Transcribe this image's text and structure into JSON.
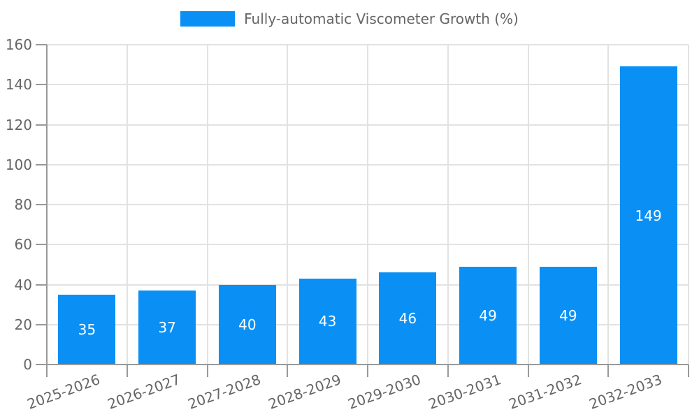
{
  "chart_data": {
    "type": "bar",
    "title": "",
    "legend": "Fully-automatic Viscometer Growth (%)",
    "legend_position": "top",
    "categories": [
      "2025-2026",
      "2026-2027",
      "2027-2028",
      "2028-2029",
      "2029-2030",
      "2030-2031",
      "2031-2032",
      "2032-2033"
    ],
    "values": [
      35,
      37,
      40,
      43,
      46,
      49,
      49,
      149
    ],
    "xlabel": "",
    "ylabel": "",
    "ylim": [
      0,
      160
    ],
    "yticks": [
      0,
      20,
      40,
      60,
      80,
      100,
      120,
      140,
      160
    ],
    "grid": true,
    "x_label_rotation_deg": -20,
    "value_label_position": "inside-center",
    "colors": {
      "bar": "#0a90f5",
      "axis": "#999999",
      "gridline": "#e2e2e2",
      "tick_label": "#666666",
      "value_label": "#ffffff",
      "background": "#ffffff"
    }
  }
}
